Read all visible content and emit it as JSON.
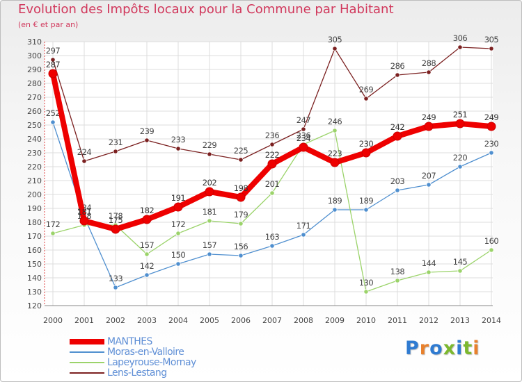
{
  "title": "Evolution des Impôts locaux pour la Commune par Habitant",
  "subtitle": "(en € et par an)",
  "logo": {
    "text": "Proxiti",
    "colors": [
      "#2f7bd1",
      "#e8812d",
      "#2f7bd1",
      "#7cb82f",
      "#2f7bd1",
      "#7cb82f",
      "#e8812d"
    ]
  },
  "chart_data": {
    "type": "line",
    "title": "Evolution des Impôts locaux pour la Commune par Habitant",
    "subtitle": "(en € et par an)",
    "xlabel": "",
    "ylabel": "",
    "categories": [
      "2000",
      "2001",
      "2002",
      "2003",
      "2004",
      "2005",
      "2006",
      "2007",
      "2008",
      "2009",
      "2010",
      "2011",
      "2012",
      "2013",
      "2014"
    ],
    "ylim": [
      120,
      310
    ],
    "yticks": [
      120,
      130,
      140,
      150,
      160,
      170,
      180,
      190,
      200,
      210,
      220,
      230,
      240,
      250,
      260,
      270,
      280,
      290,
      300,
      310
    ],
    "grid": true,
    "legend_position": "bottom-left",
    "series": [
      {
        "name": "MANTHES",
        "color": "#ee0000",
        "values": [
          287,
          181,
          175,
          182,
          191,
          202,
          198,
          222,
          234,
          223,
          230,
          242,
          249,
          251,
          249
        ]
      },
      {
        "name": "Moras-en-Valloire",
        "color": "#4f8fcf",
        "values": [
          252,
          184,
          133,
          142,
          150,
          157,
          156,
          163,
          171,
          189,
          189,
          203,
          207,
          220,
          230
        ]
      },
      {
        "name": "Lapeyrouse-Mornay",
        "color": "#9bd36a",
        "values": [
          172,
          178,
          178,
          157,
          172,
          181,
          179,
          201,
          236,
          246,
          130,
          138,
          144,
          145,
          160
        ]
      },
      {
        "name": "Lens-Lestang",
        "color": "#7b2020",
        "values": [
          297,
          224,
          231,
          239,
          233,
          229,
          225,
          236,
          247,
          305,
          269,
          286,
          288,
          306,
          305
        ]
      }
    ]
  }
}
